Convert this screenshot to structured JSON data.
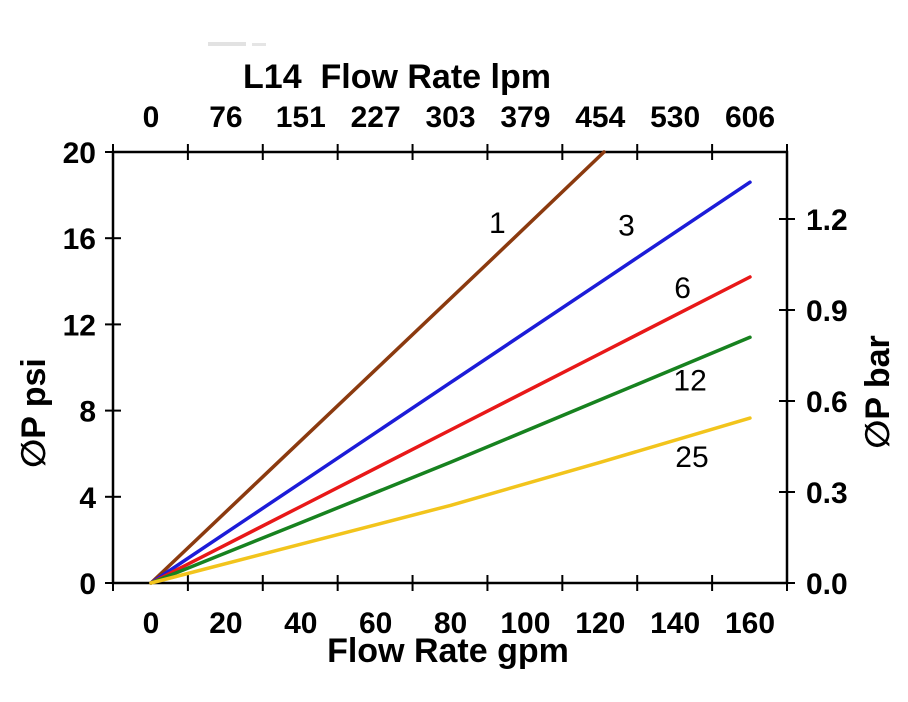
{
  "chart_data": {
    "type": "line",
    "title": "L14  Flow Rate lpm",
    "axes": {
      "top": {
        "unit": "lpm",
        "ticks": [
          "0",
          "76",
          "151",
          "227",
          "303",
          "379",
          "454",
          "530",
          "606"
        ]
      },
      "bottom": {
        "label": "Flow Rate gpm",
        "unit": "gpm",
        "ticks": [
          "0",
          "20",
          "40",
          "60",
          "80",
          "100",
          "120",
          "140",
          "160"
        ],
        "tick_values": [
          0,
          20,
          40,
          60,
          80,
          100,
          120,
          140,
          160
        ]
      },
      "left": {
        "label": "∅P psi",
        "ticks": [
          "20",
          "16",
          "12",
          "8",
          "4",
          "0"
        ],
        "tick_values": [
          20,
          16,
          12,
          8,
          4,
          0
        ],
        "range": [
          0,
          20
        ]
      },
      "right": {
        "label": "∅P bar",
        "ticks": [
          "1.2",
          "0.9",
          "0.6",
          "0.3",
          "0.0"
        ],
        "range": [
          0.0,
          1.38
        ]
      }
    },
    "x_range_gpm": [
      0,
      160
    ],
    "y_range_psi": [
      0,
      20
    ],
    "grid": "off",
    "series": [
      {
        "name": "1",
        "color": "#8b3a0f",
        "points_gpm_psi": [
          [
            0,
            0
          ],
          [
            30,
            4.95
          ],
          [
            60,
            9.9
          ],
          [
            90,
            14.85
          ],
          [
            121,
            20
          ]
        ],
        "label_at_gpm_psi": [
          92.5,
          16.7
        ]
      },
      {
        "name": "3",
        "color": "#1c1cd8",
        "points_gpm_psi": [
          [
            0,
            0
          ],
          [
            40,
            4.65
          ],
          [
            80,
            9.3
          ],
          [
            120,
            13.95
          ],
          [
            160,
            18.6
          ]
        ],
        "label_at_gpm_psi": [
          127,
          16.6
        ]
      },
      {
        "name": "6",
        "color": "#e81818",
        "points_gpm_psi": [
          [
            0,
            0
          ],
          [
            40,
            3.55
          ],
          [
            80,
            7.1
          ],
          [
            120,
            10.65
          ],
          [
            160,
            14.2
          ]
        ],
        "label_at_gpm_psi": [
          142,
          13.7
        ]
      },
      {
        "name": "12",
        "color": "#17821f",
        "points_gpm_psi": [
          [
            0,
            0
          ],
          [
            40,
            2.8
          ],
          [
            80,
            5.6
          ],
          [
            120,
            8.5
          ],
          [
            160,
            11.4
          ]
        ],
        "label_at_gpm_psi": [
          144,
          9.4
        ]
      },
      {
        "name": "25",
        "color": "#f2c41c",
        "points_gpm_psi": [
          [
            0,
            0
          ],
          [
            40,
            1.8
          ],
          [
            80,
            3.6
          ],
          [
            120,
            5.6
          ],
          [
            160,
            7.65
          ]
        ],
        "label_at_gpm_psi": [
          144.5,
          5.85
        ]
      }
    ]
  }
}
